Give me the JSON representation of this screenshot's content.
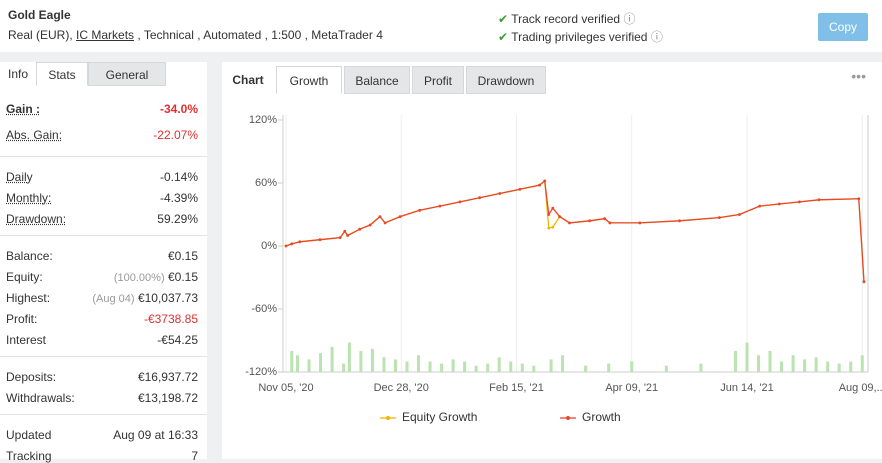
{
  "header": {
    "title": "Gold Eagle",
    "account": "Real (EUR),",
    "broker": "IC Markets",
    "details": ", Technical , Automated , 1:500 , MetaTrader 4",
    "verified": [
      "Track record verified",
      "Trading privileges verified"
    ],
    "button": "Copy"
  },
  "left_tabs": [
    "Info",
    "Stats",
    "General"
  ],
  "stats": [
    [
      {
        "label": "Gain :",
        "value": "-34.0%",
        "red": true,
        "bold": true
      },
      {
        "label": "Abs. Gain:",
        "value": "-22.07%",
        "red": true
      }
    ],
    [
      {
        "label": "Daily",
        "value": "-0.14%"
      },
      {
        "label": "Monthly:",
        "value": "-4.39%"
      },
      {
        "label": "Drawdown:",
        "value": "59.29%"
      }
    ],
    [
      {
        "label": "Balance:",
        "value": "€0.15"
      },
      {
        "label": "Equity:",
        "note": "(100.00%)",
        "value": "€0.15"
      },
      {
        "label": "Highest:",
        "note": "(Aug 04)",
        "value": "€10,037.73"
      },
      {
        "label": "Profit:",
        "value": "-€3738.85",
        "red": true
      },
      {
        "label": "Interest",
        "value": "-€54.25"
      }
    ],
    [
      {
        "label": "Deposits:",
        "value": "€16,937.72"
      },
      {
        "label": "Withdrawals:",
        "value": "€13,198.72"
      }
    ],
    [
      {
        "label": "Updated",
        "value": "Aug 09 at 16:33"
      },
      {
        "label": "Tracking",
        "value": "7"
      }
    ]
  ],
  "chart_tabs": [
    "Chart",
    "Growth",
    "Balance",
    "Profit",
    "Drawdown"
  ],
  "chart_data": {
    "type": "line",
    "x": [
      0,
      1,
      2.4,
      5.9,
      9.4,
      10.2,
      10.7,
      12.8,
      14.6,
      16.3,
      17.2,
      19.8,
      23.2,
      26.7,
      30.2,
      33.6,
      37.1,
      40.6,
      44,
      44.9,
      45.6,
      46.3,
      47.5,
      49.2,
      52.7,
      55.3,
      56.2,
      61.4,
      68.3,
      75.2,
      78.7,
      82.2,
      85.6,
      89.1,
      92.5,
      99.4,
      100.3
    ],
    "series": [
      {
        "name": "Equity Growth",
        "color": "#f5b400",
        "values": [
          0,
          2,
          4,
          6,
          8,
          14,
          10,
          16,
          20,
          28,
          22,
          28,
          34,
          38,
          42,
          46,
          50,
          54,
          58,
          62,
          17,
          18,
          28,
          22,
          24,
          26,
          22,
          22,
          24,
          27,
          30,
          38,
          40,
          42,
          44,
          45,
          -34
        ]
      },
      {
        "name": "Growth",
        "color": "#e8472c",
        "values": [
          0,
          2,
          4,
          6,
          8,
          14,
          10,
          16,
          20,
          28,
          22,
          28,
          34,
          38,
          42,
          46,
          50,
          54,
          58,
          62,
          30,
          36,
          28,
          22,
          24,
          26,
          22,
          22,
          24,
          27,
          30,
          38,
          40,
          42,
          44,
          45,
          -34
        ]
      }
    ],
    "bars": {
      "color": "#b9e3b0",
      "x": [
        1,
        2,
        4,
        6,
        8,
        10,
        11,
        13,
        15,
        17,
        19,
        21,
        23,
        25,
        27,
        29,
        31,
        33,
        35,
        37,
        39,
        41,
        43,
        46,
        48,
        52,
        56,
        60,
        66,
        72,
        78,
        80,
        82,
        84,
        86,
        88,
        90,
        92,
        94,
        96,
        98,
        100
      ],
      "values": [
        -100,
        -104,
        -108,
        -102,
        -96,
        -112,
        -92,
        -100,
        -98,
        -106,
        -108,
        -110,
        -104,
        -110,
        -112,
        -108,
        -110,
        -114,
        -112,
        -106,
        -110,
        -112,
        -114,
        -108,
        -104,
        -114,
        -112,
        -110,
        -114,
        -112,
        -100,
        -92,
        -104,
        -100,
        -110,
        -104,
        -108,
        -106,
        -110,
        -112,
        -110,
        -104
      ]
    },
    "xlim": [
      0,
      101
    ],
    "ylim": [
      -120,
      120
    ],
    "xticks": [
      {
        "value": 0,
        "label": "Nov 05, '20"
      },
      {
        "value": 20,
        "label": "Dec 28, '20"
      },
      {
        "value": 40,
        "label": "Feb 15, '21"
      },
      {
        "value": 60,
        "label": "Apr 09, '21"
      },
      {
        "value": 80,
        "label": "Jun 14, '21"
      },
      {
        "value": 100,
        "label": "Aug 09,..."
      }
    ],
    "yticks": [
      {
        "value": 120,
        "label": "120%"
      },
      {
        "value": 60,
        "label": "60%"
      },
      {
        "value": 0,
        "label": "0%"
      },
      {
        "value": -60,
        "label": "-60%"
      },
      {
        "value": -120,
        "label": "-120%"
      }
    ],
    "grid": true
  }
}
